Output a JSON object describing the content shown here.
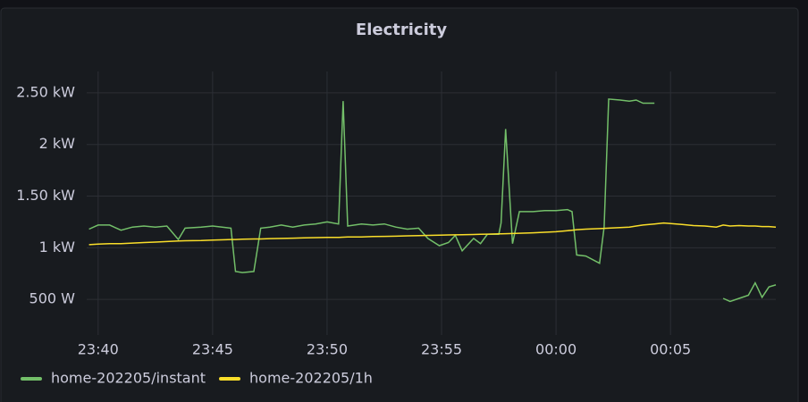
{
  "chart_data": {
    "type": "line",
    "title": "Electricity",
    "x": [
      1419.6,
      1420.0,
      1420.5,
      1421.0,
      1421.5,
      1422.0,
      1422.5,
      1423.0,
      1423.5,
      1423.8,
      1424.5,
      1425.0,
      1425.8,
      1426.0,
      1426.3,
      1426.8,
      1427.1,
      1427.5,
      1428.0,
      1428.5,
      1429.0,
      1429.5,
      1430.0,
      1430.5,
      1430.7,
      1430.9,
      1431.5,
      1432.0,
      1432.5,
      1433.0,
      1433.5,
      1434.0,
      1434.4,
      1434.9,
      1435.3,
      1435.6,
      1435.9,
      1436.4,
      1436.7,
      1437.0,
      1437.5,
      1437.6,
      1437.8,
      1438.1,
      1438.4,
      1439.0,
      1439.5,
      1440.0,
      1440.5,
      1440.7,
      1440.9,
      1441.3,
      1441.9,
      1442.1,
      1442.3,
      1442.8,
      1443.2,
      1443.5,
      1443.8,
      1444.3,
      1444.7,
      1445.5,
      1446.0,
      1446.5,
      1447.0,
      1447.3,
      1447.6,
      1448.0,
      1448.4,
      1448.7,
      1449.0,
      1449.3,
      1449.6
    ],
    "series": [
      {
        "name": "home-202205/instant",
        "color": "#73bf69",
        "values": [
          1180,
          1220,
          1220,
          1170,
          1200,
          1210,
          1200,
          1210,
          1080,
          1190,
          1200,
          1210,
          1190,
          770,
          760,
          770,
          1190,
          1200,
          1220,
          1200,
          1220,
          1230,
          1250,
          1230,
          2420,
          1210,
          1230,
          1220,
          1230,
          1200,
          1180,
          1190,
          1090,
          1020,
          1050,
          1120,
          970,
          1090,
          1040,
          1130,
          1130,
          1240,
          2150,
          1040,
          1350,
          1350,
          1360,
          1360,
          1370,
          1350,
          930,
          920,
          850,
          1200,
          2440,
          2430,
          2420,
          2430,
          2400,
          2400,
          null,
          null,
          null,
          null,
          null,
          510,
          480,
          510,
          540,
          660,
          520,
          620,
          640
        ]
      },
      {
        "name": "home-202205/1h",
        "color": "#fade2a",
        "values": [
          1030,
          1035,
          1040,
          1040,
          1045,
          1050,
          1055,
          1060,
          1065,
          1068,
          1070,
          1075,
          1080,
          1080,
          1082,
          1085,
          1085,
          1088,
          1090,
          1093,
          1095,
          1098,
          1100,
          1100,
          1102,
          1104,
          1105,
          1108,
          1110,
          1112,
          1115,
          1118,
          1120,
          1122,
          1124,
          1125,
          1126,
          1128,
          1130,
          1132,
          1134,
          1135,
          1136,
          1138,
          1140,
          1145,
          1150,
          1155,
          1165,
          1170,
          1175,
          1180,
          1185,
          1188,
          1190,
          1195,
          1200,
          1210,
          1220,
          1230,
          1240,
          1225,
          1215,
          1210,
          1200,
          1220,
          1210,
          1215,
          1210,
          1210,
          1205,
          1205,
          1200
        ]
      }
    ],
    "xlim": [
      1419.5,
      1449.6
    ],
    "xticks": [
      {
        "value": 1420,
        "label": "23:40"
      },
      {
        "value": 1425,
        "label": "23:45"
      },
      {
        "value": 1430,
        "label": "23:50"
      },
      {
        "value": 1435,
        "label": "23:55"
      },
      {
        "value": 1440,
        "label": "00:00"
      },
      {
        "value": 1445,
        "label": "00:05"
      }
    ],
    "ylim": [
      155,
      2707
    ],
    "yticks": [
      {
        "value": 500,
        "label": "500 W"
      },
      {
        "value": 1000,
        "label": "1 kW"
      },
      {
        "value": 1500,
        "label": "1.50 kW"
      },
      {
        "value": 2000,
        "label": "2 kW"
      },
      {
        "value": 2500,
        "label": "2.50 kW"
      }
    ],
    "grid": true
  }
}
